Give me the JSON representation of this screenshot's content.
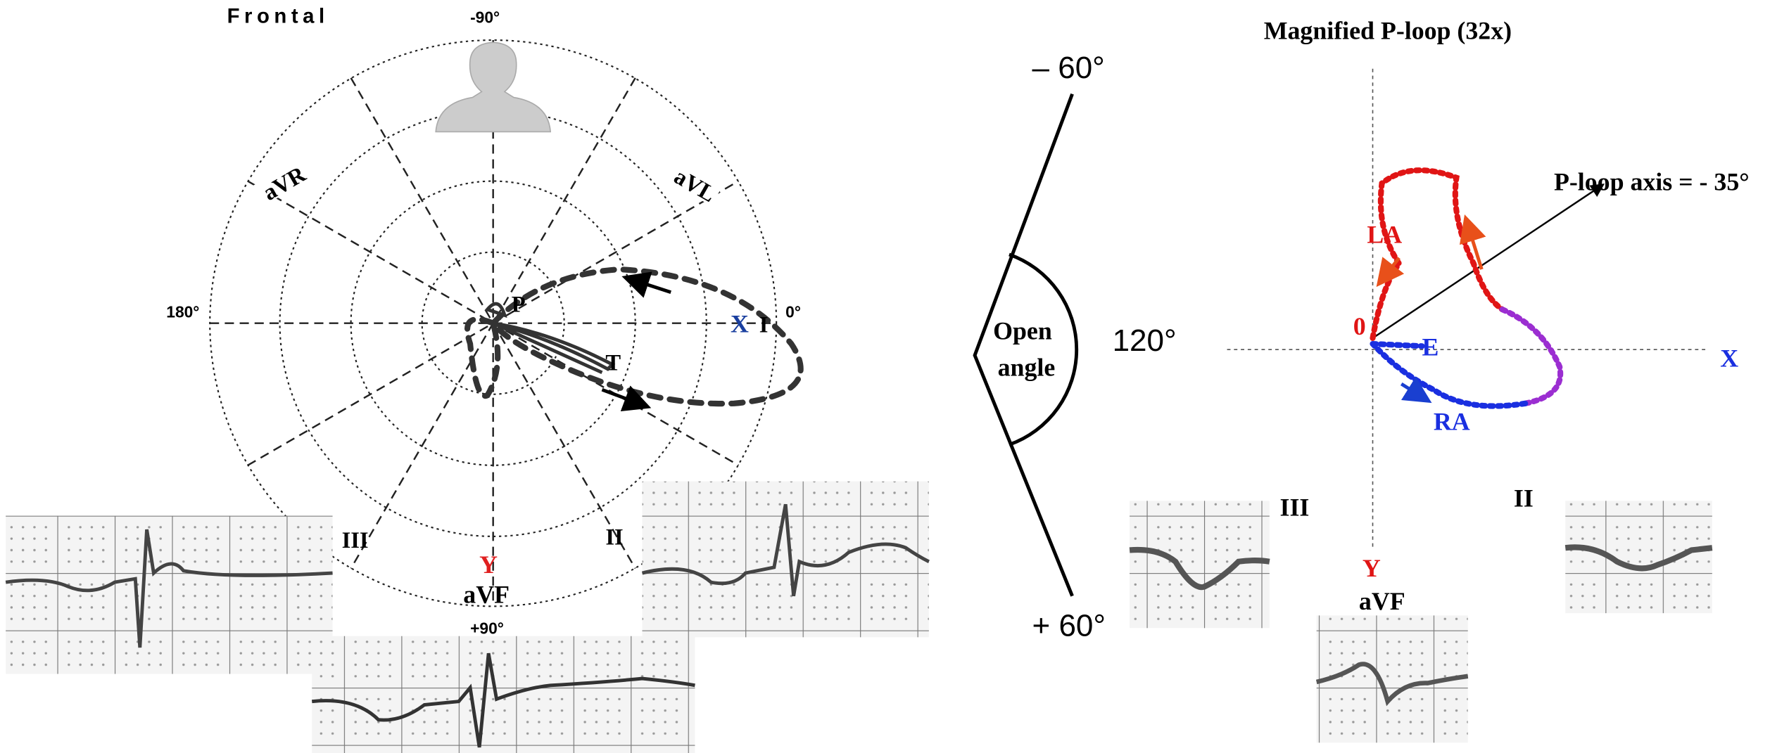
{
  "frontal_panel": {
    "title": "Frontal",
    "minus_90": "-90°",
    "angle_180": "180°",
    "angle_0": "0°",
    "avr": "aVR",
    "avl": "aVL",
    "x_axis": "X",
    "lead_i": "I",
    "p_label": "P",
    "t_label": "T",
    "lead_iii": "III",
    "lead_ii": "II",
    "y_axis": "Y",
    "avf": "aVF",
    "plus_90": "+90°"
  },
  "angle_panel": {
    "top": "– 60°",
    "open_line1": "Open",
    "open_line2": "angle",
    "angle": "120°",
    "bottom": "+ 60°"
  },
  "ploop_panel": {
    "title": "Magnified P-loop (32x)",
    "axis_label": "P-loop axis = - 35°",
    "la": "LA",
    "origin": "0",
    "e": "E",
    "x_axis": "X",
    "ra": "RA",
    "lead_iii": "III",
    "lead_ii": "II",
    "y_axis": "Y",
    "avf": "aVF"
  }
}
